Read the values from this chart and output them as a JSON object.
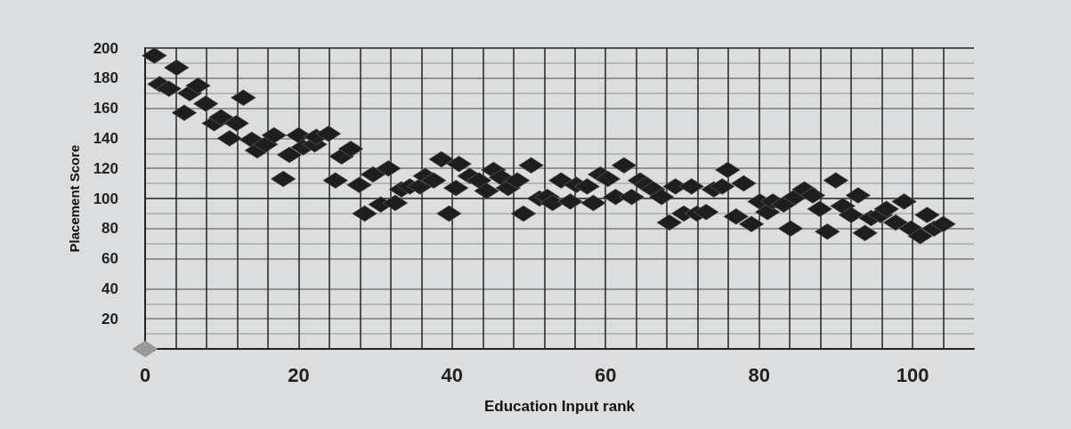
{
  "chart_data": {
    "type": "scatter",
    "xlabel": "Education Input rank",
    "ylabel": "Placement Score",
    "marker": "diamond",
    "grid": true,
    "xlim": [
      0,
      108
    ],
    "ylim": [
      0,
      200
    ],
    "xticks": [
      0,
      {
        "value": 4,
        "label": null
      },
      {
        "value": 8,
        "label": null
      },
      {
        "value": 12,
        "label": null
      },
      {
        "value": 16,
        "label": null
      },
      20,
      {
        "value": 24,
        "label": null
      },
      {
        "value": 28,
        "label": null
      },
      {
        "value": 32,
        "label": null
      },
      {
        "value": 36,
        "label": null
      },
      40,
      {
        "value": 44,
        "label": null
      },
      {
        "value": 48,
        "label": null
      },
      {
        "value": 52,
        "label": null
      },
      {
        "value": 56,
        "label": null
      },
      60,
      {
        "value": 64,
        "label": null
      },
      {
        "value": 68,
        "label": null
      },
      {
        "value": 72,
        "label": null
      },
      {
        "value": 76,
        "label": null
      },
      80,
      {
        "value": 84,
        "label": null
      },
      {
        "value": 88,
        "label": null
      },
      {
        "value": 92,
        "label": null
      },
      {
        "value": 96,
        "label": null
      },
      100,
      {
        "value": 104,
        "label": null
      }
    ],
    "yticks": [
      {
        "value": 0,
        "label": null
      },
      20,
      40,
      60,
      80,
      100,
      120,
      140,
      160,
      180,
      200
    ],
    "series": [
      {
        "color": "#1e1e1e",
        "x": [
          1.2,
          1.9,
          3.1,
          4.1,
          5.1,
          5.8,
          6.9,
          7.9,
          9.0,
          9.9,
          11.0,
          11.9,
          12.8,
          13.9,
          14.6,
          15.7,
          16.8,
          18.0,
          18.8,
          20.0,
          20.6,
          22.1,
          22.3,
          23.9,
          24.8,
          25.6,
          26.8,
          27.9,
          28.6,
          29.7,
          30.7,
          31.7,
          32.6,
          33.4,
          34.5,
          35.8,
          36.5,
          37.6,
          38.6,
          39.6,
          40.5,
          40.9,
          42.3,
          43.5,
          44.5,
          45.4,
          46.4,
          47.3,
          48.5,
          49.3,
          50.3,
          51.4,
          52.4,
          53.1,
          54.2,
          55.4,
          56.2,
          57.6,
          58.4,
          59.3,
          60.3,
          61.3,
          62.4,
          63.4,
          64.5,
          65.3,
          66.2,
          67.3,
          68.3,
          69.1,
          70.2,
          71.2,
          71.9,
          73.1,
          74.1,
          75.2,
          75.9,
          77.0,
          78.0,
          79.0,
          80.1,
          81.1,
          81.8,
          83.2,
          84.1,
          84.7,
          85.9,
          87.0,
          87.9,
          88.9,
          90.0,
          90.9,
          92.0,
          92.9,
          93.8,
          94.6,
          95.8,
          96.6,
          97.8,
          98.9,
          99.8,
          101.0,
          101.9,
          102.8,
          104.0
        ],
        "values": [
          195,
          176,
          173,
          187,
          157,
          170,
          175,
          163,
          150,
          154,
          140,
          150,
          167,
          139,
          132,
          136,
          142,
          113,
          129,
          142,
          134,
          136,
          141,
          143,
          112,
          128,
          133,
          109,
          90,
          116,
          96,
          120,
          97,
          106,
          108,
          108,
          115,
          112,
          126,
          90,
          107,
          123,
          115,
          112,
          105,
          119,
          114,
          107,
          112,
          90,
          122,
          100,
          101,
          97,
          112,
          98,
          109,
          108,
          97,
          116,
          113,
          101,
          122,
          101,
          112,
          109,
          106,
          101,
          84,
          108,
          90,
          108,
          90,
          91,
          106,
          108,
          119,
          88,
          110,
          83,
          98,
          91,
          98,
          96,
          80,
          101,
          106,
          102,
          93,
          78,
          112,
          95,
          89,
          102,
          77,
          87,
          89,
          93,
          84,
          98,
          80,
          75,
          89,
          80,
          83
        ]
      },
      {
        "color": "#999999",
        "x": [
          0
        ],
        "values": [
          0
        ]
      }
    ]
  }
}
